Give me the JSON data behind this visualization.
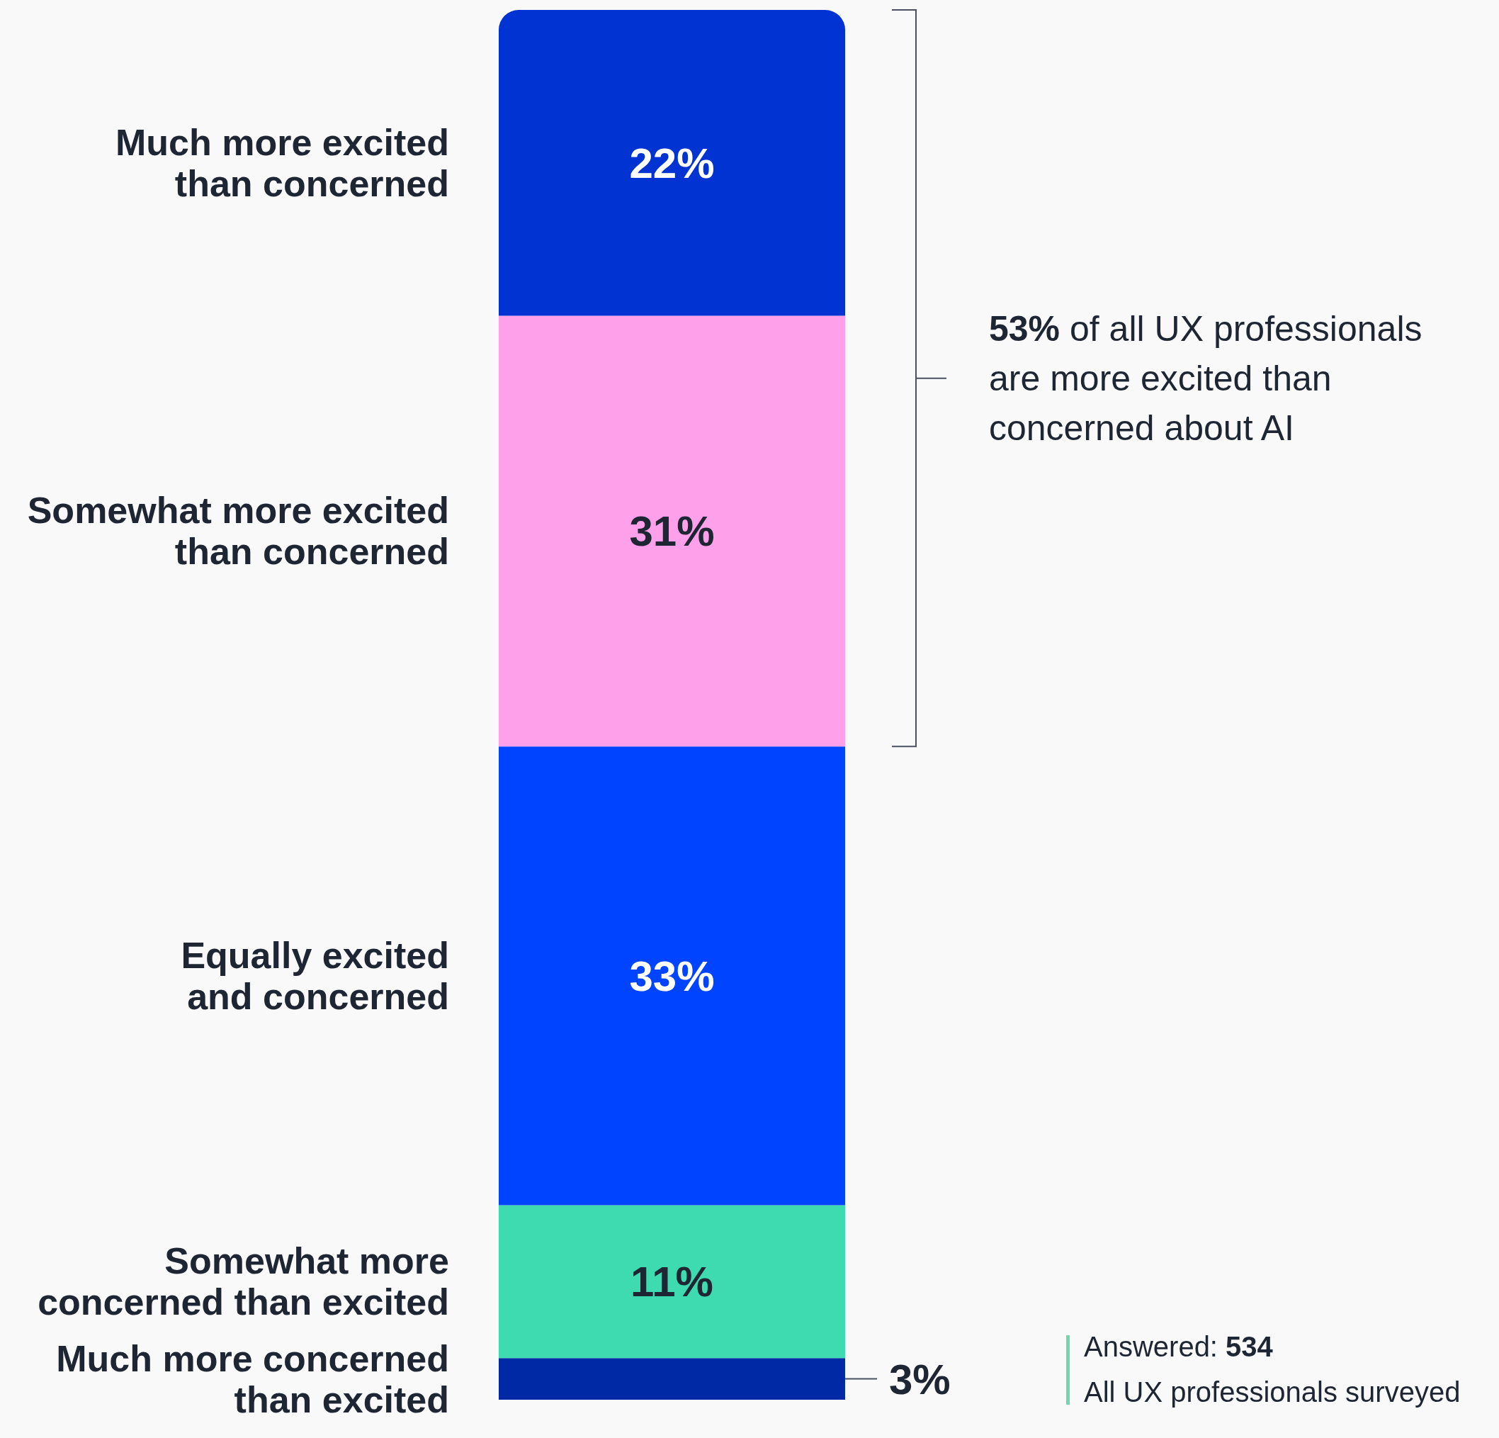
{
  "chart_data": {
    "type": "bar",
    "stacked": true,
    "categories": [
      null
    ],
    "tick_labels": false,
    "series": [
      {
        "name": "Much more concerned than excited",
        "color": "#0029a6",
        "values": [
          3
        ],
        "value_labels": [
          "3%"
        ]
      },
      {
        "name": "Somewhat more concerned than excited",
        "color": "#3edbb1",
        "values": [
          11
        ],
        "value_labels": [
          "11%"
        ]
      },
      {
        "name": "Equally excited and concerned",
        "color": "#0044ff",
        "values": [
          33
        ],
        "value_labels": [
          "33%"
        ]
      },
      {
        "name": "Somewhat more excited than concerned",
        "color": "#ffa0ea",
        "values": [
          31
        ],
        "value_labels": [
          "31%"
        ]
      },
      {
        "name": "Much more excited than concerned",
        "color": "#0033d1",
        "values": [
          22
        ],
        "value_labels": [
          "22%"
        ]
      }
    ],
    "annotations": [
      "53% of all UX professionals are more excited than concerned about AI",
      "Answered: 534",
      "All UX professionals surveyed"
    ]
  }
}
